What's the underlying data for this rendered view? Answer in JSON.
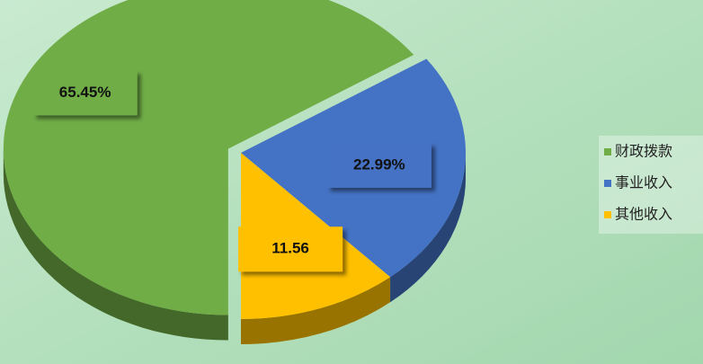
{
  "chart_data": {
    "type": "pie",
    "categories": [
      "财政拨款",
      "事业收入",
      "其他收入"
    ],
    "values": [
      65.45,
      22.99,
      11.56
    ],
    "value_labels": [
      "65.45%",
      "22.99%",
      "11.56"
    ],
    "colors": [
      "#70ad47",
      "#4472c4",
      "#ffc000"
    ],
    "legend": "right"
  }
}
